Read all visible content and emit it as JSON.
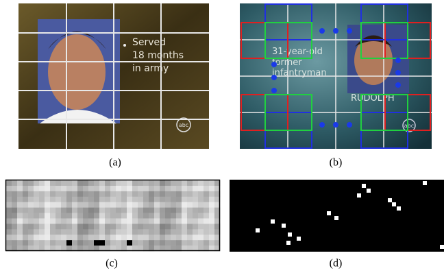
{
  "panels": [
    {
      "label": "(a)",
      "caption_lines": [
        "Served",
        "18 months",
        "in army"
      ],
      "logo": "abc"
    },
    {
      "label": "(b)",
      "caption_lines": [
        "31-year-old",
        "former",
        "infantryman"
      ],
      "name_tag": "RUDOLPH",
      "logo": "abc"
    },
    {
      "label": "(c)"
    },
    {
      "label": "(d)"
    }
  ]
}
